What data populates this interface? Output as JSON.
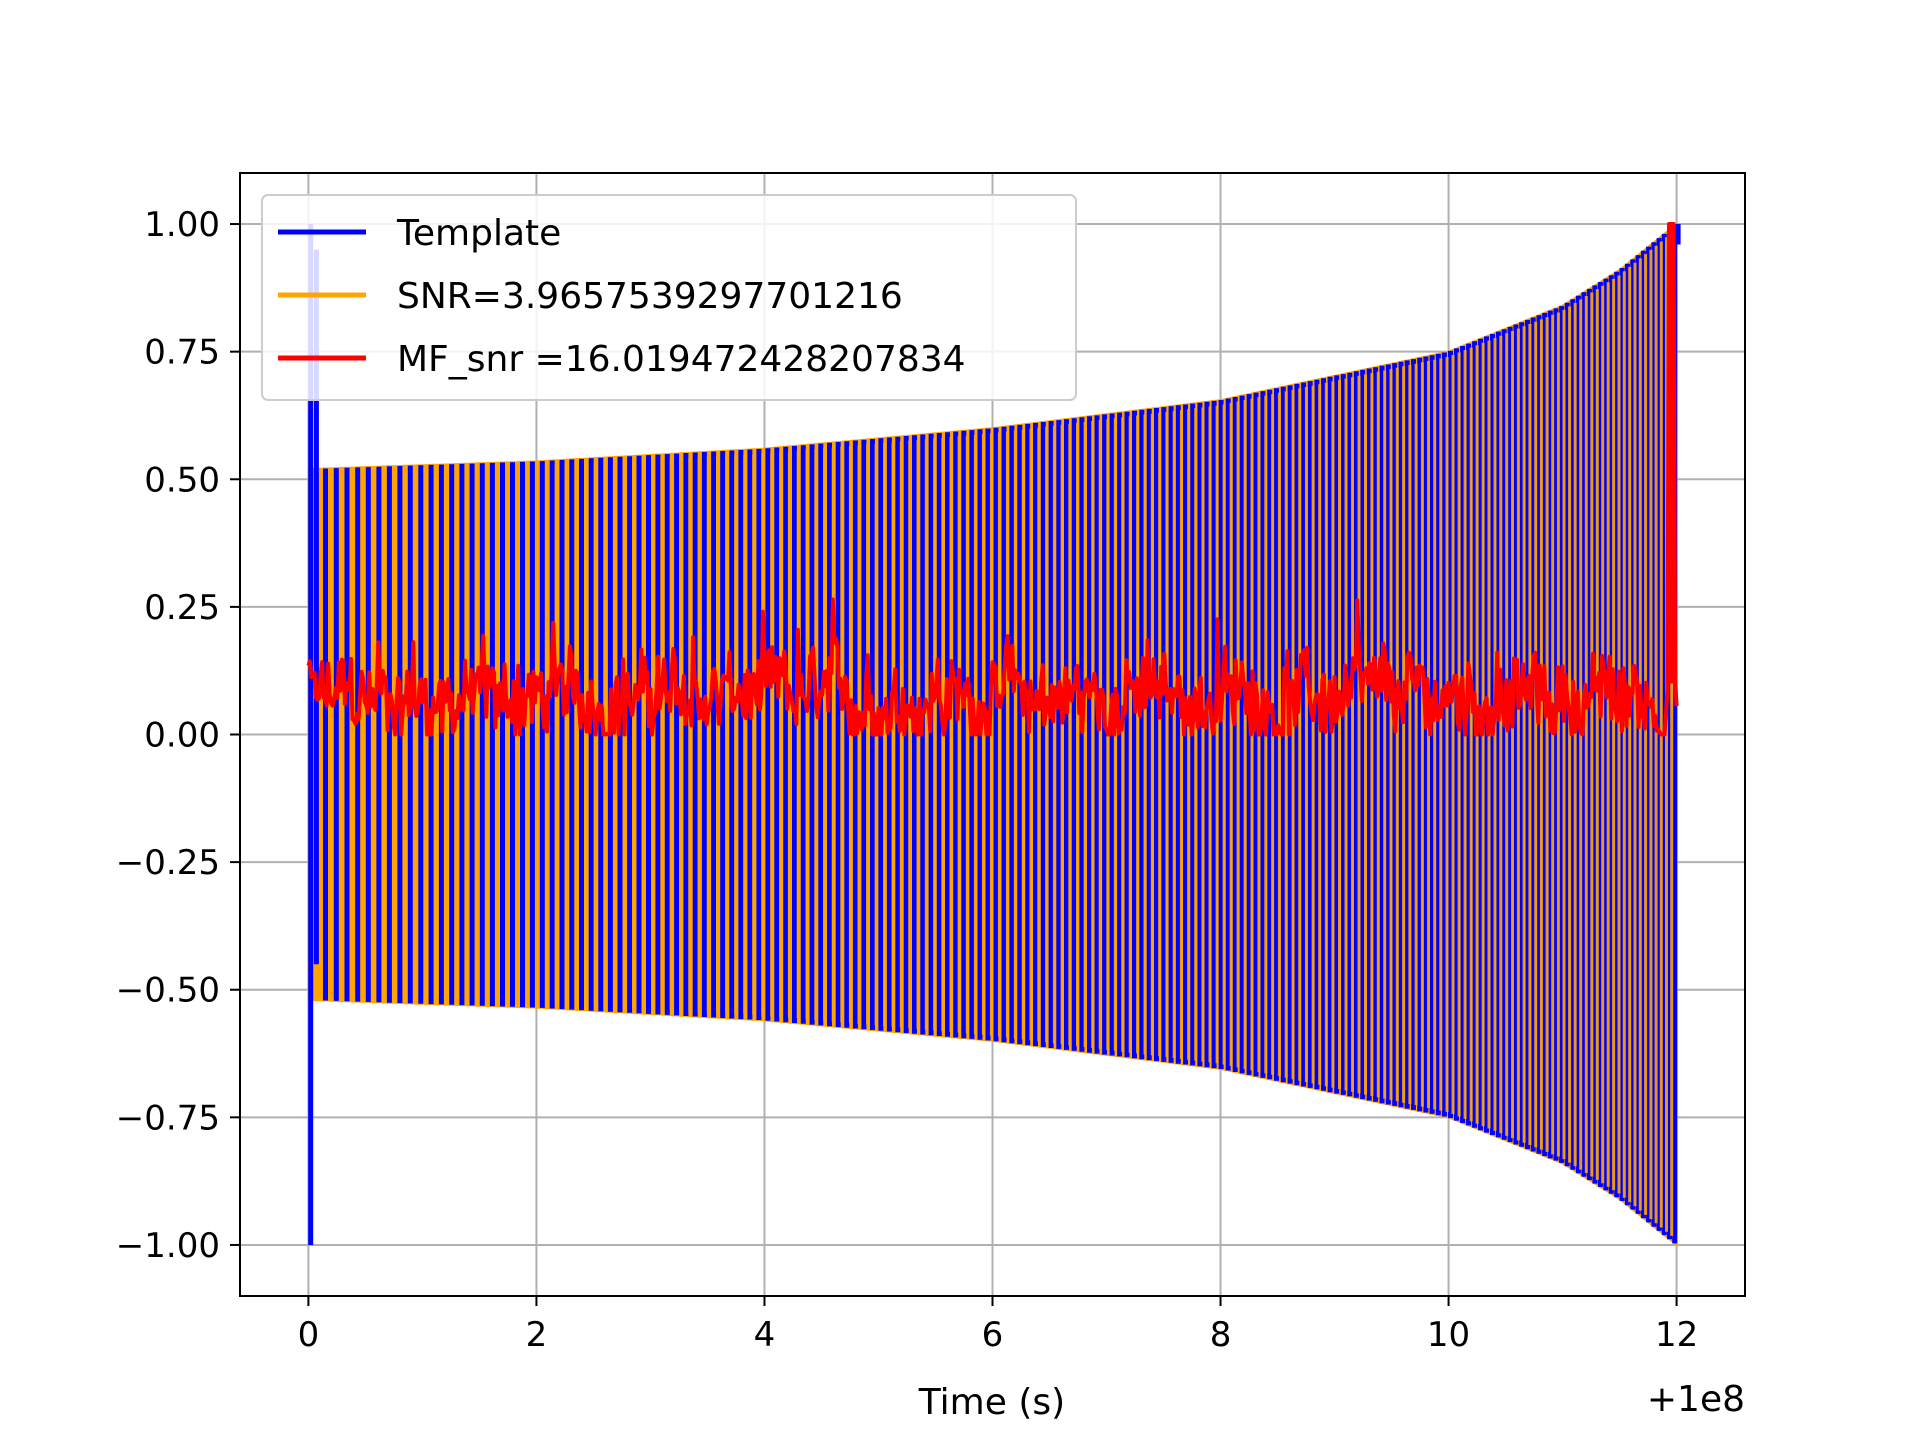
{
  "chart_data": {
    "type": "line",
    "title": "",
    "xlabel": "Time (s)",
    "ylabel": "",
    "x_offset_label": "+1e8",
    "xlim": [
      -0.6,
      12.6
    ],
    "ylim": [
      -1.1,
      1.1
    ],
    "xticks": [
      0,
      2,
      4,
      6,
      8,
      10,
      12
    ],
    "xtick_labels": [
      "0",
      "2",
      "4",
      "6",
      "8",
      "10",
      "12"
    ],
    "yticks": [
      1.0,
      0.75,
      0.5,
      0.25,
      0.0,
      -0.25,
      -0.5,
      -0.75,
      -1.0
    ],
    "ytick_labels": [
      "1.00",
      "0.75",
      "0.50",
      "0.25",
      "0.00",
      "−0.25",
      "−0.50",
      "−0.75",
      "−1.00"
    ],
    "grid": true,
    "legend_position": "top-left",
    "series": [
      {
        "name": "Template",
        "color": "#0000ff",
        "form": "chirp",
        "x_start": 0.0,
        "x_end": 12.0,
        "envelope": [
          [
            0.0,
            0.52
          ],
          [
            2.0,
            0.535
          ],
          [
            4.0,
            0.56
          ],
          [
            6.0,
            0.6
          ],
          [
            8.0,
            0.655
          ],
          [
            10.0,
            0.75
          ],
          [
            11.0,
            0.84
          ],
          [
            11.5,
            0.91
          ],
          [
            12.0,
            1.0
          ]
        ],
        "initial_spike": {
          "x": 0.02,
          "ymax": 1.0,
          "ymin": -1.0
        }
      },
      {
        "name": "SNR=3.9657539297701216",
        "color": "#ffa500",
        "form": "chirp",
        "x_start": 0.0,
        "x_end": 12.0,
        "envelope": [
          [
            0.0,
            0.52
          ],
          [
            2.0,
            0.535
          ],
          [
            4.0,
            0.56
          ],
          [
            6.0,
            0.6
          ],
          [
            8.0,
            0.655
          ],
          [
            10.0,
            0.75
          ],
          [
            11.0,
            0.84
          ],
          [
            11.5,
            0.91
          ],
          [
            12.0,
            1.0
          ]
        ]
      },
      {
        "name": "MF_snr =16.019472428207834",
        "color": "#ff0000",
        "form": "noise",
        "x_start": 0.0,
        "x_end": 12.0,
        "baseline": 0.07,
        "range": [
          0.0,
          0.28
        ],
        "peak": {
          "x": 11.95,
          "y": 1.0
        }
      }
    ]
  }
}
